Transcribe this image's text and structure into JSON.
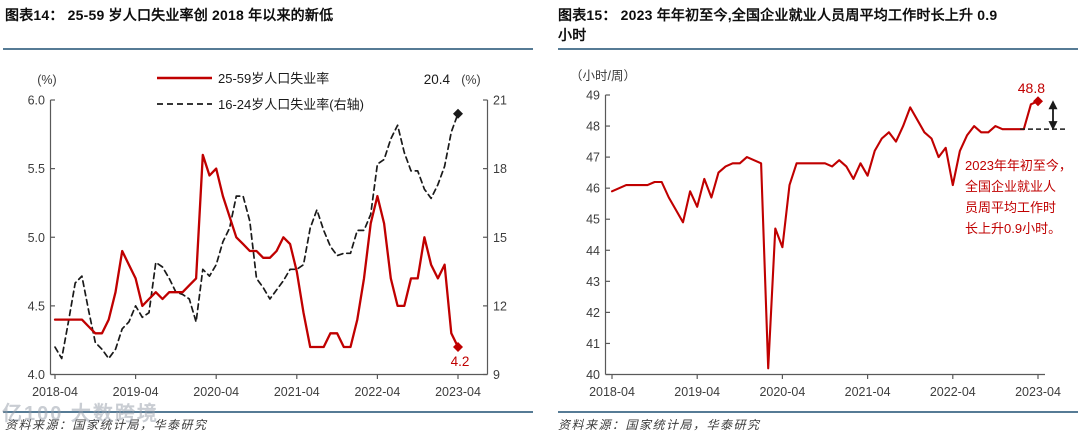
{
  "colors": {
    "accent_red": "#C00000",
    "series_black": "#1a1a1a",
    "axis": "#595959",
    "tick_text": "#3d3d3d",
    "rule": "#567b95"
  },
  "watermark": "亿100 大数跨境",
  "panels": [
    {
      "fig_title": "图表14：  25-59 岁人口失业率创 2018 年以来的新低",
      "source": "资料来源：国家统计局，华泰研究"
    },
    {
      "fig_title": "图表15：  2023 年年初至今,全国企业就业人员周平均工作时长上升 0.9\n小时",
      "source": "资料来源：国家统计局，华泰研究"
    }
  ],
  "chart_data": [
    {
      "type": "line",
      "title": "25-59 岁人口失业率创 2018 年以来的新低",
      "x_monthly_start": "2018-04",
      "x_tick_labels": [
        "2018-04",
        "2019-04",
        "2020-04",
        "2021-04",
        "2022-04",
        "2023-04"
      ],
      "left_axis": {
        "unit": "(%)",
        "min": 4.0,
        "max": 6.0,
        "ticks": [
          "6.0",
          "5.5",
          "5.0",
          "4.5",
          "4.0"
        ]
      },
      "right_axis": {
        "unit": "(%)",
        "min": 9,
        "max": 21,
        "ticks": [
          "21",
          "18",
          "15",
          "12",
          "9"
        ]
      },
      "legend_position": "top-center",
      "grid": false,
      "series": [
        {
          "name": "25-59岁人口失业率",
          "axis": "left",
          "style": "solid",
          "color": "#C00000",
          "end_label": "4.2",
          "end_marker": "diamond",
          "values": [
            4.4,
            4.4,
            4.4,
            4.4,
            4.4,
            4.35,
            4.3,
            4.3,
            4.4,
            4.6,
            4.9,
            4.8,
            4.7,
            4.5,
            4.55,
            4.6,
            4.55,
            4.6,
            4.6,
            4.6,
            4.65,
            4.7,
            5.6,
            5.45,
            5.5,
            5.3,
            5.15,
            5.0,
            4.95,
            4.9,
            4.9,
            4.85,
            4.85,
            4.9,
            5.0,
            4.95,
            4.75,
            4.45,
            4.2,
            4.2,
            4.2,
            4.3,
            4.3,
            4.2,
            4.2,
            4.4,
            4.7,
            5.1,
            5.3,
            5.1,
            4.7,
            4.5,
            4.5,
            4.7,
            4.7,
            5.0,
            4.8,
            4.7,
            4.8,
            4.3,
            4.2
          ]
        },
        {
          "name": "16-24岁人口失业率(右轴)",
          "axis": "right",
          "style": "dashed",
          "color": "#1a1a1a",
          "end_label": "20.4",
          "end_marker": "diamond",
          "values": [
            10.2,
            9.7,
            11.3,
            13.0,
            13.3,
            11.8,
            10.4,
            10.1,
            9.7,
            10.1,
            11.0,
            11.3,
            12.0,
            11.5,
            11.7,
            13.9,
            13.7,
            13.2,
            12.6,
            12.5,
            12.3,
            11.3,
            13.6,
            13.3,
            13.8,
            14.8,
            15.4,
            16.8,
            16.8,
            15.7,
            13.2,
            12.8,
            12.3,
            12.7,
            13.1,
            13.6,
            13.6,
            13.8,
            15.4,
            16.2,
            15.3,
            14.6,
            14.2,
            14.3,
            14.3,
            15.3,
            15.3,
            16.0,
            18.2,
            18.4,
            19.3,
            19.9,
            18.7,
            17.9,
            17.9,
            17.1,
            16.7,
            17.3,
            18.1,
            19.6,
            20.4
          ]
        }
      ]
    },
    {
      "type": "line",
      "title": "2023 年年初至今,全国企业就业人员周平均工作时长上升 0.9 小时",
      "x_monthly_start": "2018-04",
      "x_tick_labels": [
        "2018-04",
        "2019-04",
        "2020-04",
        "2021-04",
        "2022-04",
        "2023-04"
      ],
      "left_axis": {
        "unit": "（小时/周）",
        "min": 40,
        "max": 49,
        "ticks": [
          "49",
          "48",
          "47",
          "46",
          "45",
          "44",
          "43",
          "42",
          "41",
          "40"
        ]
      },
      "grid": false,
      "series": [
        {
          "name": "全国企业就业人员周平均工作时长",
          "axis": "left",
          "style": "solid",
          "color": "#C00000",
          "end_label": "48.8",
          "end_marker": "diamond",
          "values": [
            45.9,
            46.0,
            46.1,
            46.1,
            46.1,
            46.1,
            46.2,
            46.2,
            45.7,
            45.3,
            44.9,
            45.9,
            45.4,
            46.3,
            45.7,
            46.5,
            46.7,
            46.8,
            46.8,
            47.0,
            46.9,
            46.8,
            40.2,
            44.7,
            44.1,
            46.1,
            46.8,
            46.8,
            46.8,
            46.8,
            46.8,
            46.7,
            46.9,
            46.7,
            46.3,
            46.8,
            46.4,
            47.2,
            47.6,
            47.8,
            47.5,
            48.0,
            48.6,
            48.2,
            47.8,
            47.6,
            47.0,
            47.3,
            46.1,
            47.2,
            47.7,
            48.0,
            47.8,
            47.8,
            48.0,
            47.9,
            47.9,
            47.9,
            47.9,
            48.7,
            48.8
          ]
        }
      ],
      "baseline_value": 47.9,
      "arrow": {
        "from": 48.8,
        "to": 47.9
      },
      "annotation": {
        "color": "#C00000",
        "lines": [
          "2023年年初至今，",
          "全国企业就业人",
          "员周平均工作时",
          "长上升0.9小时。"
        ]
      }
    }
  ]
}
